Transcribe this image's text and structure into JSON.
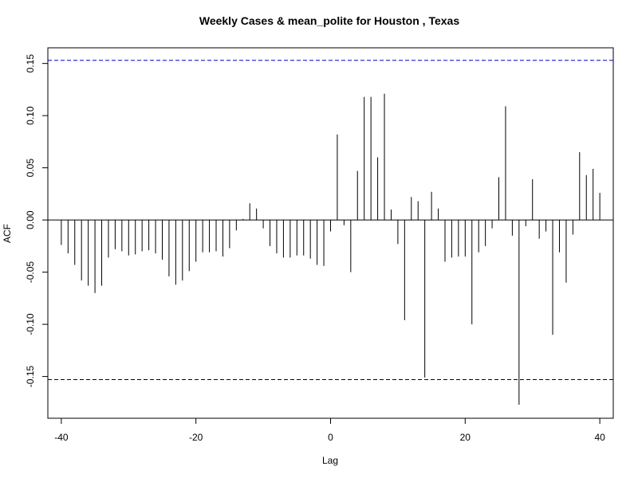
{
  "chart_data": {
    "type": "bar",
    "title": "Weekly Cases & mean_polite for Houston , Texas",
    "xlabel": "Lag",
    "ylabel": "ACF",
    "xlim": [
      -42,
      42
    ],
    "ylim": [
      -0.19,
      0.165
    ],
    "x_ticks": [
      -40,
      -20,
      0,
      20,
      40
    ],
    "x_tick_labels": [
      "-40",
      "-20",
      "0",
      "20",
      "40"
    ],
    "y_ticks": [
      -0.15,
      -0.1,
      -0.05,
      0.0,
      0.05,
      0.1,
      0.15
    ],
    "y_tick_labels": [
      "-0.15",
      "-0.10",
      "-0.05",
      "0.00",
      "0.05",
      "0.10",
      "0.15"
    ],
    "confidence_bounds": {
      "upper": 0.153,
      "lower": -0.153,
      "color": "#0000cc"
    },
    "lags": [
      -40,
      -39,
      -38,
      -37,
      -36,
      -35,
      -34,
      -33,
      -32,
      -31,
      -30,
      -29,
      -28,
      -27,
      -26,
      -25,
      -24,
      -23,
      -22,
      -21,
      -20,
      -19,
      -18,
      -17,
      -16,
      -15,
      -14,
      -13,
      -12,
      -11,
      -10,
      -9,
      -8,
      -7,
      -6,
      -5,
      -4,
      -3,
      -2,
      -1,
      0,
      1,
      2,
      3,
      4,
      5,
      6,
      7,
      8,
      9,
      10,
      11,
      12,
      13,
      14,
      15,
      16,
      17,
      18,
      19,
      20,
      21,
      22,
      23,
      24,
      25,
      26,
      27,
      28,
      29,
      30,
      31,
      32,
      33,
      34,
      35,
      36,
      37,
      38,
      39,
      40
    ],
    "acf": [
      -0.024,
      -0.032,
      -0.043,
      -0.058,
      -0.063,
      -0.07,
      -0.063,
      -0.036,
      -0.028,
      -0.03,
      -0.034,
      -0.033,
      -0.03,
      -0.029,
      -0.032,
      -0.038,
      -0.054,
      -0.062,
      -0.058,
      -0.049,
      -0.04,
      -0.031,
      -0.031,
      -0.03,
      -0.035,
      -0.027,
      -0.01,
      0.001,
      0.016,
      0.011,
      -0.008,
      -0.025,
      -0.032,
      -0.036,
      -0.036,
      -0.034,
      -0.034,
      -0.037,
      -0.043,
      -0.044,
      -0.011,
      0.082,
      -0.005,
      -0.05,
      0.047,
      0.118,
      0.118,
      0.06,
      0.121,
      0.01,
      -0.023,
      -0.096,
      0.022,
      0.018,
      -0.151,
      0.027,
      0.011,
      -0.04,
      -0.036,
      -0.035,
      -0.035,
      -0.1,
      -0.031,
      -0.025,
      -0.008,
      0.041,
      0.109,
      -0.015,
      -0.177,
      -0.006,
      0.039,
      -0.018,
      -0.011,
      -0.11,
      -0.031,
      -0.06,
      -0.014,
      0.065,
      0.043,
      0.049,
      0.026
    ]
  }
}
